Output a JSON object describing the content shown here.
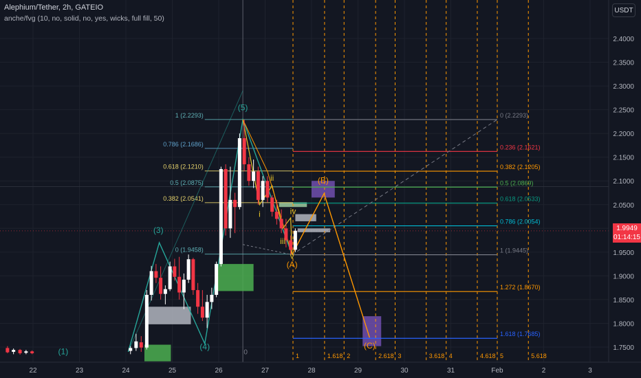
{
  "header": {
    "title": "Alephium/Tether, 2h, GATEIO",
    "indicator": "anche/fvg (10, no, solid, no, yes, wicks, full fill, 50)"
  },
  "currency_button": "USDT",
  "last_price": {
    "price": "1.9949",
    "countdown": "01:14:15"
  },
  "chart_data": {
    "type": "candlestick",
    "y_axis": {
      "min": 1.72,
      "max": 2.45,
      "ticks": [
        "2.4000",
        "2.3500",
        "2.3000",
        "2.2500",
        "2.2000",
        "2.1500",
        "2.1000",
        "2.0500",
        "2.0000",
        "1.9500",
        "1.9000",
        "1.8500",
        "1.8000",
        "1.7500"
      ]
    },
    "x_axis": {
      "ticks": [
        {
          "label": "22",
          "day": 22
        },
        {
          "label": "23",
          "day": 23
        },
        {
          "label": "24",
          "day": 24
        },
        {
          "label": "25",
          "day": 25
        },
        {
          "label": "26",
          "day": 26
        },
        {
          "label": "27",
          "day": 27
        },
        {
          "label": "28",
          "day": 28
        },
        {
          "label": "29",
          "day": 29
        },
        {
          "label": "30",
          "day": 30
        },
        {
          "label": "31",
          "day": 31
        },
        {
          "label": "Feb",
          "day": 32
        },
        {
          "label": "2",
          "day": 33
        },
        {
          "label": "3",
          "day": 34
        }
      ]
    },
    "candles": [
      {
        "x": 21.45,
        "o": 1.748,
        "h": 1.752,
        "l": 1.737,
        "c": 1.739
      },
      {
        "x": 21.58,
        "o": 1.74,
        "h": 1.747,
        "l": 1.735,
        "c": 1.744
      },
      {
        "x": 21.72,
        "o": 1.744,
        "h": 1.746,
        "l": 1.734,
        "c": 1.737
      },
      {
        "x": 21.85,
        "o": 1.738,
        "h": 1.744,
        "l": 1.735,
        "c": 1.741
      },
      {
        "x": 21.98,
        "o": 1.741,
        "h": 1.743,
        "l": 1.735,
        "c": 1.737
      },
      {
        "x": 24.1,
        "o": 1.742,
        "h": 1.752,
        "l": 1.735,
        "c": 1.748
      },
      {
        "x": 24.22,
        "o": 1.748,
        "h": 1.778,
        "l": 1.742,
        "c": 1.762
      },
      {
        "x": 24.33,
        "o": 1.76,
        "h": 1.773,
        "l": 1.74,
        "c": 1.749
      },
      {
        "x": 24.45,
        "o": 1.749,
        "h": 1.87,
        "l": 1.745,
        "c": 1.86
      },
      {
        "x": 24.55,
        "o": 1.86,
        "h": 1.921,
        "l": 1.848,
        "c": 1.91
      },
      {
        "x": 24.65,
        "o": 1.91,
        "h": 1.925,
        "l": 1.885,
        "c": 1.896
      },
      {
        "x": 24.75,
        "o": 1.896,
        "h": 1.92,
        "l": 1.85,
        "c": 1.862
      },
      {
        "x": 24.85,
        "o": 1.862,
        "h": 1.88,
        "l": 1.84,
        "c": 1.872
      },
      {
        "x": 24.95,
        "o": 1.872,
        "h": 1.93,
        "l": 1.868,
        "c": 1.92
      },
      {
        "x": 25.05,
        "o": 1.92,
        "h": 1.936,
        "l": 1.89,
        "c": 1.898
      },
      {
        "x": 25.15,
        "o": 1.898,
        "h": 1.94,
        "l": 1.85,
        "c": 1.865
      },
      {
        "x": 25.25,
        "o": 1.865,
        "h": 1.905,
        "l": 1.83,
        "c": 1.892
      },
      {
        "x": 25.35,
        "o": 1.892,
        "h": 1.945,
        "l": 1.885,
        "c": 1.935
      },
      {
        "x": 25.45,
        "o": 1.935,
        "h": 1.938,
        "l": 1.86,
        "c": 1.87
      },
      {
        "x": 25.55,
        "o": 1.87,
        "h": 1.885,
        "l": 1.82,
        "c": 1.835
      },
      {
        "x": 25.65,
        "o": 1.835,
        "h": 1.87,
        "l": 1.805,
        "c": 1.812
      },
      {
        "x": 25.75,
        "o": 1.812,
        "h": 1.86,
        "l": 1.79,
        "c": 1.845
      },
      {
        "x": 25.85,
        "o": 1.845,
        "h": 1.875,
        "l": 1.83,
        "c": 1.86
      },
      {
        "x": 25.95,
        "o": 1.86,
        "h": 1.93,
        "l": 1.855,
        "c": 1.925
      },
      {
        "x": 26.05,
        "o": 1.925,
        "h": 2.13,
        "l": 1.92,
        "c": 2.125
      },
      {
        "x": 26.15,
        "o": 2.125,
        "h": 2.135,
        "l": 1.985,
        "c": 2.0
      },
      {
        "x": 26.25,
        "o": 2.0,
        "h": 2.13,
        "l": 1.98,
        "c": 2.06
      },
      {
        "x": 26.35,
        "o": 2.06,
        "h": 2.075,
        "l": 1.99,
        "c": 2.045
      },
      {
        "x": 26.45,
        "o": 2.045,
        "h": 2.2,
        "l": 2.04,
        "c": 2.19
      },
      {
        "x": 26.55,
        "o": 2.19,
        "h": 2.229,
        "l": 2.12,
        "c": 2.135
      },
      {
        "x": 26.65,
        "o": 2.135,
        "h": 2.15,
        "l": 2.09,
        "c": 2.1
      },
      {
        "x": 26.75,
        "o": 2.1,
        "h": 2.145,
        "l": 2.085,
        "c": 2.12
      },
      {
        "x": 26.85,
        "o": 2.12,
        "h": 2.13,
        "l": 2.05,
        "c": 2.06
      },
      {
        "x": 26.95,
        "o": 2.06,
        "h": 2.11,
        "l": 2.045,
        "c": 2.1
      },
      {
        "x": 27.05,
        "o": 2.1,
        "h": 2.11,
        "l": 2.055,
        "c": 2.065
      },
      {
        "x": 27.15,
        "o": 2.065,
        "h": 2.07,
        "l": 2.025,
        "c": 2.035
      },
      {
        "x": 27.25,
        "o": 2.035,
        "h": 2.06,
        "l": 2.008,
        "c": 2.02
      },
      {
        "x": 27.35,
        "o": 2.02,
        "h": 2.04,
        "l": 1.99,
        "c": 2.0
      },
      {
        "x": 27.45,
        "o": 2.0,
        "h": 2.02,
        "l": 1.96,
        "c": 1.975
      },
      {
        "x": 27.55,
        "o": 1.975,
        "h": 1.985,
        "l": 1.945,
        "c": 1.955
      },
      {
        "x": 27.65,
        "o": 1.955,
        "h": 2.0,
        "l": 1.95,
        "c": 1.995
      }
    ],
    "fib_left": {
      "x_from": 25.7,
      "x_to": 27.6,
      "levels": [
        {
          "label": "1 (2.2293)",
          "y": 2.2293,
          "color": "#5fb0b5"
        },
        {
          "label": "0.786 (2.1686)",
          "y": 2.1686,
          "color": "#5fa0c9"
        },
        {
          "label": "0.618 (2.1210)",
          "y": 2.121,
          "color": "#e6d36c"
        },
        {
          "label": "0.5 (2.0875)",
          "y": 2.0875,
          "color": "#5fb0b5"
        },
        {
          "label": "0.382 (2.0541)",
          "y": 2.0541,
          "color": "#e6d36c"
        },
        {
          "label": "0 (1.9458)",
          "y": 1.9458,
          "color": "#5fb0b5"
        }
      ]
    },
    "fib_right": {
      "x_from": 27.6,
      "x_to": 32.0,
      "levels": [
        {
          "label": "0 (2.2293)",
          "y": 2.2293,
          "color": "#787b86"
        },
        {
          "label": "0.236 (2.1621)",
          "y": 2.1621,
          "color": "#f23645"
        },
        {
          "label": "0.382 (2.1205)",
          "y": 2.1205,
          "color": "#ff9800"
        },
        {
          "label": "0.5 (2.0869)",
          "y": 2.0869,
          "color": "#4caf50"
        },
        {
          "label": "0.618 (2.0533)",
          "y": 2.0533,
          "color": "#089981"
        },
        {
          "label": "0.786 (2.0054)",
          "y": 2.0054,
          "color": "#00bcd4"
        },
        {
          "label": "1 (1.9445)",
          "y": 1.9445,
          "color": "#787b86"
        },
        {
          "label": "1.272 (1.8670)",
          "y": 1.867,
          "color": "#ff9800"
        },
        {
          "label": "1.618 (1.7685)",
          "y": 1.7685,
          "color": "#2962ff"
        }
      ]
    },
    "fib_time": [
      {
        "label": "1",
        "x": 27.6,
        "color": "#ff9800"
      },
      {
        "label": "1.618",
        "x": 28.28,
        "color": "#ff9800"
      },
      {
        "label": "2",
        "x": 28.7,
        "color": "#ff9800"
      },
      {
        "label": "2.618",
        "x": 29.38,
        "color": "#ff9800"
      },
      {
        "label": "3",
        "x": 29.8,
        "color": "#ff9800"
      },
      {
        "label": "3.618",
        "x": 30.47,
        "color": "#ff9800"
      },
      {
        "label": "4",
        "x": 30.9,
        "color": "#ff9800"
      },
      {
        "label": "4.618",
        "x": 31.57,
        "color": "#ff9800"
      },
      {
        "label": "5",
        "x": 32.0,
        "color": "#ff9800"
      },
      {
        "label": "5.618",
        "x": 32.67,
        "color": "#ff9800"
      }
    ],
    "elliott_main": {
      "points": [
        [
          24.05,
          1.74
        ],
        [
          24.72,
          1.97
        ],
        [
          25.7,
          1.757
        ],
        [
          26.52,
          2.2293
        ],
        [
          27.58,
          1.9445
        ],
        [
          28.27,
          2.0735
        ],
        [
          29.25,
          1.77
        ]
      ],
      "color": "#26a69a"
    },
    "wave_labels": [
      {
        "text": "(1)",
        "x": 22.65,
        "y": 1.735,
        "color": "#26a69a",
        "size": 12
      },
      {
        "text": "(3)",
        "x": 24.7,
        "y": 1.99,
        "color": "#26a69a",
        "size": 12
      },
      {
        "text": "(4)",
        "x": 25.7,
        "y": 1.745,
        "color": "#26a69a",
        "size": 12
      },
      {
        "text": "(5)",
        "x": 26.52,
        "y": 2.249,
        "color": "#26a69a",
        "size": 12
      },
      {
        "text": "i",
        "x": 26.88,
        "y": 2.024,
        "color": "#e6c229",
        "size": 12
      },
      {
        "text": "ii",
        "x": 27.15,
        "y": 2.1,
        "color": "#e6c229",
        "size": 12
      },
      {
        "text": "iii",
        "x": 27.38,
        "y": 1.967,
        "color": "#e6c229",
        "size": 12
      },
      {
        "text": "iv",
        "x": 27.6,
        "y": 2.03,
        "color": "#e6c229",
        "size": 12
      },
      {
        "text": "v",
        "x": 27.58,
        "y": 1.936,
        "color": "#e6c229",
        "size": 12
      },
      {
        "text": "(A)",
        "x": 27.58,
        "y": 1.918,
        "color": "#ff9800",
        "size": 12
      },
      {
        "text": "(B)",
        "x": 28.25,
        "y": 2.095,
        "color": "#ff9800",
        "size": 12
      },
      {
        "text": "(C)",
        "x": 29.25,
        "y": 1.747,
        "color": "#ff9800",
        "size": 12
      },
      {
        "text": "0",
        "x": 26.58,
        "y": 1.735,
        "color": "#787b86",
        "size": 10
      }
    ]
  }
}
